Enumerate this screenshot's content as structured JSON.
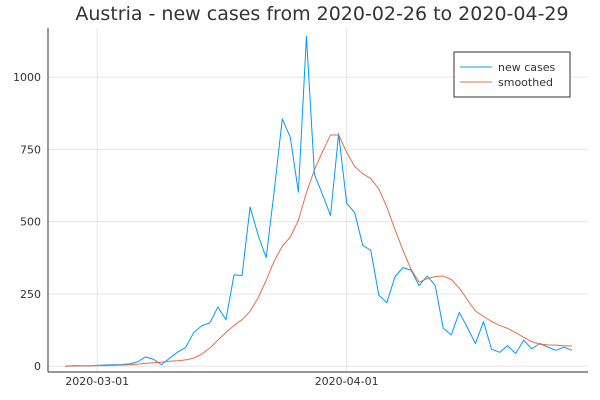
{
  "chart_data": {
    "type": "line",
    "title": "Austria - new cases from 2020-02-26 to 2020-04-29",
    "xlabel": "",
    "ylabel": "",
    "x_start": "2020-02-26",
    "x_end": "2020-04-29",
    "x_ticks": [
      "2020-03-01",
      "2020-04-01"
    ],
    "ylim": [
      -20,
      1170
    ],
    "y_ticks": [
      0,
      250,
      500,
      750,
      1000
    ],
    "grid": true,
    "legend_position": "top-right",
    "series": [
      {
        "name": "new cases",
        "color": "#009AF9",
        "values": [
          0,
          2,
          1,
          1,
          3,
          4,
          5,
          6,
          8,
          15,
          32,
          24,
          5,
          28,
          49,
          65,
          117,
          140,
          150,
          205,
          161,
          316,
          314,
          551,
          453,
          375,
          607,
          856,
          792,
          602,
          1141,
          663,
          594,
          521,
          805,
          564,
          531,
          418,
          401,
          245,
          220,
          310,
          341,
          332,
          279,
          312,
          280,
          131,
          109,
          186,
          134,
          78,
          154,
          59,
          48,
          71,
          44,
          90,
          60,
          79,
          66,
          55,
          66,
          55
        ]
      },
      {
        "name": "smoothed",
        "color": "#E26F46",
        "values": [
          0,
          1,
          1,
          1,
          2,
          2,
          3,
          4,
          5,
          7,
          10,
          12,
          14,
          17,
          19,
          22,
          28,
          42,
          63,
          90,
          117,
          141,
          161,
          190,
          237,
          297,
          364,
          415,
          447,
          505,
          600,
          680,
          742,
          800,
          800,
          740,
          691,
          666,
          649,
          613,
          550,
          473,
          401,
          335,
          291,
          303,
          310,
          312,
          300,
          270,
          230,
          191,
          172,
          155,
          141,
          131,
          116,
          100,
          85,
          76,
          74,
          73,
          71,
          70
        ]
      }
    ]
  }
}
